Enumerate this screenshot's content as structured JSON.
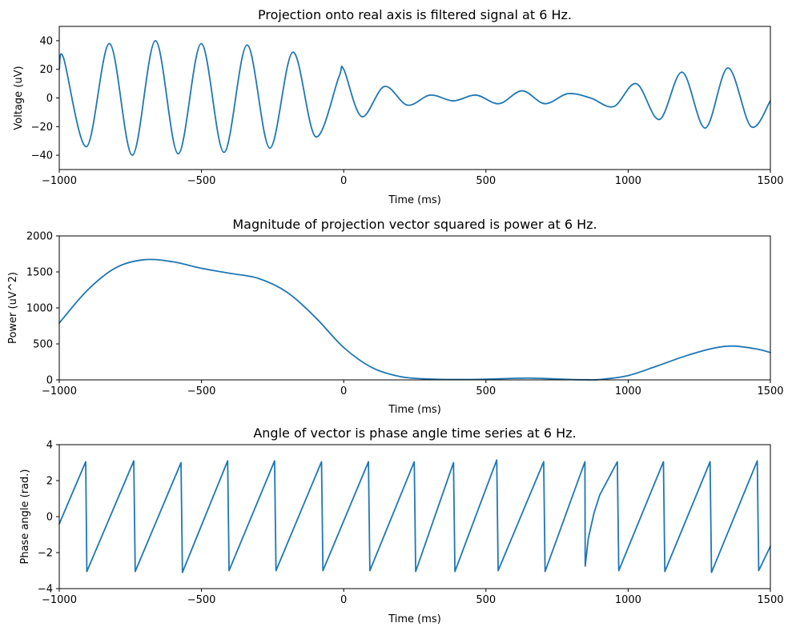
{
  "chart_data": [
    {
      "type": "line",
      "title": "Projection onto real axis is filtered signal at 6 Hz.",
      "xlabel": "Time (ms)",
      "ylabel": "Voltage (uV)",
      "xlim": [
        -1000,
        1500
      ],
      "ylim": [
        -50,
        50
      ],
      "xticks": [
        -1000,
        -500,
        0,
        500,
        1000,
        1500
      ],
      "xtick_labels": [
        "−1000",
        "−500",
        "0",
        "500",
        "1000",
        "1500"
      ],
      "yticks": [
        -40,
        -20,
        0,
        20,
        40
      ],
      "ytick_labels": [
        "−40",
        "−20",
        "0",
        "20",
        "40"
      ],
      "grid": false,
      "series": [
        {
          "color": "#1f77b4",
          "x": [
            -1000,
            -985,
            -904,
            -823,
            -743,
            -662,
            -582,
            -501,
            -421,
            -340,
            -260,
            -179,
            -99,
            -18,
            0,
            63,
            143,
            224,
            304,
            385,
            465,
            546,
            627,
            707,
            788,
            868,
            949,
            1029,
            1110,
            1190,
            1271,
            1351,
            1432,
            1500
          ],
          "y": [
            20,
            28,
            -34,
            38,
            -40,
            40,
            -39,
            38,
            -38,
            37,
            -35,
            32,
            -27,
            14,
            20,
            -13,
            8,
            -5,
            2,
            -2,
            2,
            -4,
            5,
            -4,
            3,
            0,
            -6,
            10,
            -15,
            18,
            -21,
            21,
            -20,
            -2
          ]
        }
      ]
    },
    {
      "type": "line",
      "title": "Magnitude of projection vector squared is power at 6 Hz.",
      "xlabel": "Time (ms)",
      "ylabel": "Power (uV^2)",
      "xlim": [
        -1000,
        1500
      ],
      "ylim": [
        0,
        2000
      ],
      "xticks": [
        -1000,
        -500,
        0,
        500,
        1000,
        1500
      ],
      "xtick_labels": [
        "−1000",
        "−500",
        "0",
        "500",
        "1000",
        "1500"
      ],
      "yticks": [
        0,
        500,
        1000,
        1500,
        2000
      ],
      "ytick_labels": [
        "0",
        "500",
        "1000",
        "1500",
        "2000"
      ],
      "grid": false,
      "series": [
        {
          "color": "#1f77b4",
          "x": [
            -1000,
            -900,
            -800,
            -700,
            -600,
            -500,
            -400,
            -300,
            -200,
            -100,
            0,
            100,
            200,
            300,
            400,
            500,
            600,
            650,
            700,
            800,
            850,
            900,
            1000,
            1100,
            1200,
            1300,
            1370,
            1450,
            1500
          ],
          "y": [
            790,
            1250,
            1560,
            1670,
            1640,
            1550,
            1480,
            1410,
            1220,
            870,
            450,
            170,
            45,
            12,
            5,
            10,
            22,
            25,
            20,
            5,
            2,
            5,
            60,
            190,
            330,
            440,
            470,
            430,
            380
          ]
        }
      ]
    },
    {
      "type": "line",
      "title": "Angle of vector is phase angle time series at 6 Hz.",
      "xlabel": "Time (ms)",
      "ylabel": "Phase angle (rad.)",
      "xlim": [
        -1000,
        1500
      ],
      "ylim": [
        -4,
        4
      ],
      "xticks": [
        -1000,
        -500,
        0,
        500,
        1000,
        1500
      ],
      "xtick_labels": [
        "−1000",
        "−500",
        "0",
        "500",
        "1000",
        "1500"
      ],
      "yticks": [
        -4,
        -2,
        0,
        2,
        4
      ],
      "ytick_labels": [
        "−4",
        "−2",
        "0",
        "2",
        "4"
      ],
      "grid": false,
      "series": [
        {
          "color": "#1f77b4",
          "x": [
            -1000,
            -907,
            -903,
            -738,
            -733,
            -572,
            -567,
            -408,
            -403,
            -243,
            -238,
            -78,
            -73,
            87,
            92,
            248,
            253,
            386,
            391,
            538,
            543,
            703,
            708,
            848,
            849,
            860,
            880,
            900,
            962,
            967,
            1124,
            1129,
            1288,
            1293,
            1454,
            1459,
            1500
          ],
          "y": [
            -0.4,
            3.05,
            -3.05,
            3.1,
            -3.05,
            3.0,
            -3.1,
            3.1,
            -3.0,
            3.1,
            -3.0,
            3.05,
            -3.0,
            3.05,
            -3.0,
            3.05,
            -3.05,
            3.0,
            -3.05,
            3.15,
            -3.0,
            3.05,
            -3.05,
            3.05,
            -2.75,
            -1.2,
            0.2,
            1.2,
            3.05,
            -3.0,
            3.05,
            -3.05,
            3.05,
            -3.1,
            3.1,
            -3.0,
            -1.65
          ]
        }
      ]
    }
  ]
}
